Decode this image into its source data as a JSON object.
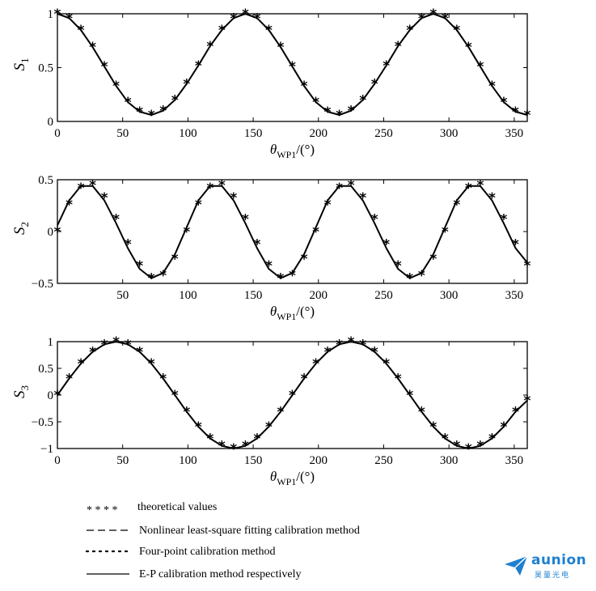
{
  "chart_data": [
    {
      "type": "line",
      "ylabel": "S",
      "ylabel_sub": "1",
      "xlabel": "θ",
      "xlabel_sub": "WP1",
      "xlabel_unit": "/(°)",
      "xlim": [
        0,
        360
      ],
      "ylim": [
        0,
        1
      ],
      "xticks": [
        0,
        50,
        100,
        150,
        200,
        250,
        300,
        350
      ],
      "yticks": [
        0,
        0.5,
        1
      ],
      "ytick_labels": [
        "0",
        "0.5",
        "1"
      ],
      "grid": false,
      "series": [
        {
          "name": "theoretical values",
          "style": "markers-asterisk",
          "x": [
            0,
            9,
            18,
            27,
            36,
            45,
            54,
            63,
            72,
            81,
            90,
            99,
            108,
            117,
            126,
            135,
            144,
            153,
            162,
            171,
            180,
            189,
            198,
            207,
            216,
            225,
            234,
            243,
            252,
            261,
            270,
            279,
            288,
            297,
            306,
            315,
            324,
            333,
            342,
            351,
            360
          ],
          "values": [
            1,
            0.96,
            0.85,
            0.69,
            0.51,
            0.33,
            0.18,
            0.09,
            0.06,
            0.1,
            0.2,
            0.35,
            0.52,
            0.7,
            0.85,
            0.96,
            1,
            0.96,
            0.85,
            0.69,
            0.51,
            0.33,
            0.18,
            0.09,
            0.06,
            0.1,
            0.2,
            0.35,
            0.52,
            0.7,
            0.85,
            0.96,
            1,
            0.96,
            0.85,
            0.69,
            0.51,
            0.33,
            0.18,
            0.09,
            0.06
          ]
        },
        {
          "name": "E-P calibration method respectively",
          "style": "solid",
          "x": [
            0,
            9,
            18,
            27,
            36,
            45,
            54,
            63,
            72,
            81,
            90,
            99,
            108,
            117,
            126,
            135,
            144,
            153,
            162,
            171,
            180,
            189,
            198,
            207,
            216,
            225,
            234,
            243,
            252,
            261,
            270,
            279,
            288,
            297,
            306,
            315,
            324,
            333,
            342,
            351,
            360
          ],
          "values": [
            1,
            0.96,
            0.85,
            0.69,
            0.51,
            0.33,
            0.18,
            0.09,
            0.06,
            0.1,
            0.2,
            0.35,
            0.52,
            0.7,
            0.85,
            0.96,
            1,
            0.96,
            0.85,
            0.69,
            0.51,
            0.33,
            0.18,
            0.09,
            0.06,
            0.1,
            0.2,
            0.35,
            0.52,
            0.7,
            0.85,
            0.96,
            1,
            0.96,
            0.85,
            0.69,
            0.51,
            0.33,
            0.18,
            0.09,
            0.06
          ]
        }
      ]
    },
    {
      "type": "line",
      "ylabel": "S",
      "ylabel_sub": "2",
      "xlabel": "θ",
      "xlabel_sub": "WP1",
      "xlabel_unit": "/(°)",
      "xlim": [
        0,
        360
      ],
      "ylim": [
        -0.5,
        0.5
      ],
      "xticks": [
        50,
        100,
        150,
        200,
        250,
        300,
        350
      ],
      "yticks": [
        -0.5,
        0,
        0.5
      ],
      "ytick_labels": [
        "−0.5",
        "0",
        "0.5"
      ],
      "grid": false,
      "series": [
        {
          "name": "theoretical values",
          "style": "markers-asterisk",
          "x": [
            0,
            9,
            18,
            27,
            36,
            45,
            54,
            63,
            72,
            81,
            90,
            99,
            108,
            117,
            126,
            135,
            144,
            153,
            162,
            171,
            180,
            189,
            198,
            207,
            216,
            225,
            234,
            243,
            252,
            261,
            270,
            279,
            288,
            297,
            306,
            315,
            324,
            333,
            342,
            351,
            360
          ],
          "values": [
            0,
            0.26,
            0.42,
            0.45,
            0.33,
            0.12,
            -0.12,
            -0.33,
            -0.45,
            -0.42,
            -0.26,
            0,
            0.26,
            0.42,
            0.45,
            0.33,
            0.12,
            -0.12,
            -0.33,
            -0.45,
            -0.42,
            -0.26,
            0,
            0.26,
            0.42,
            0.45,
            0.33,
            0.12,
            -0.12,
            -0.33,
            -0.45,
            -0.42,
            -0.26,
            0,
            0.26,
            0.42,
            0.45,
            0.33,
            0.12,
            -0.12,
            -0.33
          ]
        },
        {
          "name": "E-P calibration method respectively",
          "style": "solid",
          "x": [
            0,
            9,
            18,
            27,
            36,
            45,
            54,
            63,
            72,
            81,
            90,
            99,
            108,
            117,
            126,
            135,
            144,
            153,
            162,
            171,
            180,
            189,
            198,
            207,
            216,
            225,
            234,
            243,
            252,
            261,
            270,
            279,
            288,
            297,
            306,
            315,
            324,
            333,
            342,
            351,
            360
          ],
          "values": [
            0.06,
            0.3,
            0.44,
            0.44,
            0.3,
            0.08,
            -0.16,
            -0.36,
            -0.45,
            -0.4,
            -0.22,
            0.04,
            0.3,
            0.44,
            0.44,
            0.3,
            0.08,
            -0.16,
            -0.36,
            -0.45,
            -0.4,
            -0.22,
            0.04,
            0.3,
            0.44,
            0.44,
            0.3,
            0.08,
            -0.16,
            -0.36,
            -0.45,
            -0.4,
            -0.22,
            0.04,
            0.3,
            0.44,
            0.44,
            0.3,
            0.08,
            -0.16,
            -0.3
          ]
        }
      ]
    },
    {
      "type": "line",
      "ylabel": "S",
      "ylabel_sub": "3",
      "xlabel": "θ",
      "xlabel_sub": "WP1",
      "xlabel_unit": "/(°)",
      "xlim": [
        0,
        360
      ],
      "ylim": [
        -1,
        1
      ],
      "xticks": [
        0,
        50,
        100,
        150,
        200,
        250,
        300,
        350
      ],
      "yticks": [
        -1,
        -0.5,
        0,
        0.5,
        1
      ],
      "ytick_labels": [
        "−1",
        "−0.5",
        "0",
        "0.5",
        "1"
      ],
      "grid": false,
      "series": [
        {
          "name": "theoretical values",
          "style": "markers-asterisk",
          "x": [
            0,
            9,
            18,
            27,
            36,
            45,
            54,
            63,
            72,
            81,
            90,
            99,
            108,
            117,
            126,
            135,
            144,
            153,
            162,
            171,
            180,
            189,
            198,
            207,
            216,
            225,
            234,
            243,
            252,
            261,
            270,
            279,
            288,
            297,
            306,
            315,
            324,
            333,
            342,
            351,
            360
          ],
          "values": [
            0,
            0.31,
            0.59,
            0.81,
            0.95,
            1,
            0.95,
            0.81,
            0.59,
            0.31,
            0,
            -0.31,
            -0.59,
            -0.81,
            -0.95,
            -1,
            -0.95,
            -0.81,
            -0.59,
            -0.31,
            0,
            0.31,
            0.59,
            0.81,
            0.95,
            1,
            0.95,
            0.81,
            0.59,
            0.31,
            0,
            -0.31,
            -0.59,
            -0.81,
            -0.95,
            -1,
            -0.95,
            -0.81,
            -0.59,
            -0.31,
            -0.1
          ]
        },
        {
          "name": "E-P calibration method respectively",
          "style": "solid",
          "x": [
            0,
            9,
            18,
            27,
            36,
            45,
            54,
            63,
            72,
            81,
            90,
            99,
            108,
            117,
            126,
            135,
            144,
            153,
            162,
            171,
            180,
            189,
            198,
            207,
            216,
            225,
            234,
            243,
            252,
            261,
            270,
            279,
            288,
            297,
            306,
            315,
            324,
            333,
            342,
            351,
            360
          ],
          "values": [
            0,
            0.31,
            0.59,
            0.81,
            0.95,
            1,
            0.95,
            0.81,
            0.59,
            0.31,
            0,
            -0.31,
            -0.59,
            -0.81,
            -0.95,
            -1,
            -0.95,
            -0.81,
            -0.59,
            -0.31,
            0,
            0.31,
            0.59,
            0.81,
            0.95,
            1,
            0.95,
            0.81,
            0.59,
            0.31,
            0,
            -0.31,
            -0.59,
            -0.81,
            -0.95,
            -1,
            -0.95,
            -0.81,
            -0.59,
            -0.31,
            -0.1
          ]
        }
      ]
    }
  ],
  "legend": [
    {
      "marker": "* * * *",
      "label": "theoretical values"
    },
    {
      "marker": "dashed",
      "label": "Nonlinear least-square fitting calibration method"
    },
    {
      "marker": "dotted",
      "label": "Four-point calibration method"
    },
    {
      "marker": "solid",
      "label": "E-P calibration method respectively"
    }
  ],
  "logo": {
    "brand": "aunion",
    "sub": "昊量光电",
    "color": "#1e7fcf"
  }
}
